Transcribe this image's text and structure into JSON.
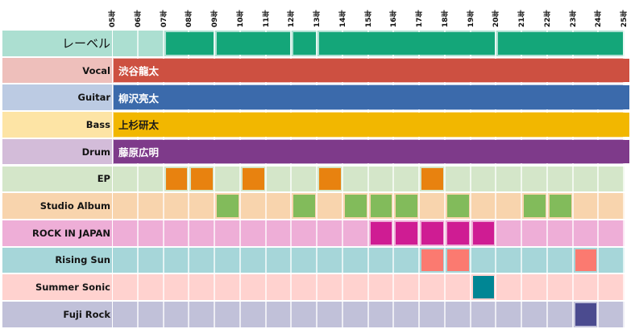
{
  "chart_data": {
    "type": "heatmap",
    "title": "",
    "x_ticks": [
      "05年",
      "06年",
      "07年",
      "08年",
      "09年",
      "10年",
      "11年",
      "12年",
      "13年",
      "14年",
      "15年",
      "16年",
      "17年",
      "18年",
      "19年",
      "20年",
      "21年",
      "22年",
      "23年",
      "24年",
      "25年"
    ],
    "year_start": 5,
    "year_end": 25,
    "rows": [
      {
        "key": "label",
        "name": "レーベル",
        "bg": "#acdfd1",
        "mark_color": "#14a679",
        "type": "bands",
        "bands": [
          [
            7,
            9
          ],
          [
            9,
            12
          ],
          [
            12,
            13
          ],
          [
            13,
            20
          ],
          [
            20,
            25
          ]
        ]
      },
      {
        "key": "vocal",
        "name": "Vocal",
        "bg": "#eebfbb",
        "type": "member",
        "member": "渋谷龍太",
        "mark_color": "#cd5041",
        "text_color": "#ffffff",
        "span": [
          5,
          25
        ]
      },
      {
        "key": "guitar",
        "name": "Guitar",
        "bg": "#bccbe3",
        "type": "member",
        "member": "柳沢亮太",
        "mark_color": "#3b6aab",
        "text_color": "#ffffff",
        "span": [
          5,
          25
        ]
      },
      {
        "key": "bass",
        "name": "Bass",
        "bg": "#fde4a5",
        "type": "member",
        "member": "上杉研太",
        "mark_color": "#f2b700",
        "text_color": "#1a1a1a",
        "span": [
          5,
          25
        ]
      },
      {
        "key": "drum",
        "name": "Drum",
        "bg": "#d3bcd9",
        "type": "member",
        "member": "藤原広明",
        "mark_color": "#7e3a8a",
        "text_color": "#ffffff",
        "span": [
          5,
          25
        ]
      },
      {
        "key": "ep",
        "name": "EP",
        "bg": "#d4e6c9",
        "mark_color": "#e8820f",
        "type": "years",
        "years": [
          7,
          8,
          10,
          13,
          17
        ]
      },
      {
        "key": "studio_album",
        "name": "Studio Album",
        "bg": "#f8d4ad",
        "mark_color": "#82bb5b",
        "type": "years",
        "years": [
          9,
          12,
          14,
          15,
          16,
          18,
          21,
          22
        ]
      },
      {
        "key": "rock_in_japan",
        "name": "ROCK IN JAPAN",
        "bg": "#eeaed7",
        "mark_color": "#cf1c93",
        "type": "years",
        "years": [
          15,
          16,
          17,
          18,
          19
        ]
      },
      {
        "key": "rising_sun",
        "name": "Rising Sun",
        "bg": "#a6d6d9",
        "mark_color": "#fb7a70",
        "type": "years",
        "years": [
          17,
          18,
          23
        ]
      },
      {
        "key": "summer_sonic",
        "name": "Summer Sonic",
        "bg": "#ffd2cf",
        "mark_color": "#008694",
        "type": "years",
        "years": [
          19
        ]
      },
      {
        "key": "fuji_rock",
        "name": "Fuji Rock",
        "bg": "#c1c1d9",
        "mark_color": "#4b4b8f",
        "type": "years",
        "years": [
          23
        ]
      }
    ],
    "grid": true,
    "legend": "none"
  }
}
